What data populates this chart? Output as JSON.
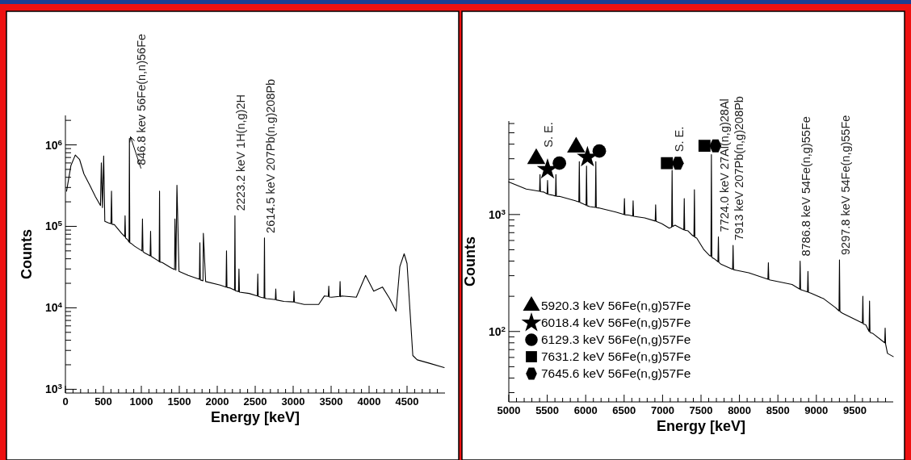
{
  "chart_data": [
    {
      "type": "line",
      "xlabel": "Energy [keV]",
      "ylabel": "Counts",
      "log": true,
      "xlim": [
        0,
        5000
      ],
      "ylim": [
        900,
        2300000
      ],
      "xticks": [
        0,
        {
          "value": 100,
          "label": null
        },
        {
          "value": 200,
          "label": null
        },
        {
          "value": 300,
          "label": null
        },
        {
          "value": 400,
          "label": null
        },
        500,
        {
          "value": 600,
          "label": null
        },
        {
          "value": 700,
          "label": null
        },
        {
          "value": 800,
          "label": null
        },
        {
          "value": 900,
          "label": null
        },
        1000,
        {
          "value": 1100,
          "label": null
        },
        {
          "value": 1200,
          "label": null
        },
        {
          "value": 1300,
          "label": null
        },
        {
          "value": 1400,
          "label": null
        },
        1500,
        {
          "value": 1600,
          "label": null
        },
        {
          "value": 1700,
          "label": null
        },
        {
          "value": 1800,
          "label": null
        },
        {
          "value": 1900,
          "label": null
        },
        2000,
        {
          "value": 2100,
          "label": null
        },
        {
          "value": 2200,
          "label": null
        },
        {
          "value": 2300,
          "label": null
        },
        {
          "value": 2400,
          "label": null
        },
        2500,
        {
          "value": 2600,
          "label": null
        },
        {
          "value": 2700,
          "label": null
        },
        {
          "value": 2800,
          "label": null
        },
        {
          "value": 2900,
          "label": null
        },
        3000,
        {
          "value": 3100,
          "label": null
        },
        {
          "value": 3200,
          "label": null
        },
        {
          "value": 3300,
          "label": null
        },
        {
          "value": 3400,
          "label": null
        },
        3500,
        {
          "value": 3600,
          "label": null
        },
        {
          "value": 3700,
          "label": null
        },
        {
          "value": 3800,
          "label": null
        },
        {
          "value": 3900,
          "label": null
        },
        4000,
        {
          "value": 4100,
          "label": null
        },
        {
          "value": 4200,
          "label": null
        },
        {
          "value": 4300,
          "label": null
        },
        {
          "value": 4400,
          "label": null
        },
        4500,
        {
          "value": 4600,
          "label": null
        },
        {
          "value": 4700,
          "label": null
        },
        {
          "value": 4800,
          "label": null
        },
        {
          "value": 4900,
          "label": null
        }
      ],
      "yticks": [
        {
          "value": 1000,
          "label": "10$^{3}$"
        },
        {
          "value": 2000,
          "label": null
        },
        {
          "value": 3000,
          "label": null
        },
        {
          "value": 4000,
          "label": null
        },
        {
          "value": 5000,
          "label": null
        },
        {
          "value": 6000,
          "label": null
        },
        {
          "value": 7000,
          "label": null
        },
        {
          "value": 8000,
          "label": null
        },
        {
          "value": 9000,
          "label": null
        },
        {
          "value": 10000,
          "label": "10$^{4}$"
        },
        {
          "value": 20000,
          "label": null
        },
        {
          "value": 30000,
          "label": null
        },
        {
          "value": 40000,
          "label": null
        },
        {
          "value": 50000,
          "label": null
        },
        {
          "value": 60000,
          "label": null
        },
        {
          "value": 70000,
          "label": null
        },
        {
          "value": 80000,
          "label": null
        },
        {
          "value": 90000,
          "label": null
        },
        {
          "value": 100000,
          "label": "10$^{5}$"
        },
        {
          "value": 200000,
          "label": null
        },
        {
          "value": 300000,
          "label": null
        },
        {
          "value": 400000,
          "label": null
        },
        {
          "value": 500000,
          "label": null
        },
        {
          "value": 600000,
          "label": null
        },
        {
          "value": 700000,
          "label": null
        },
        {
          "value": 800000,
          "label": null
        },
        {
          "value": 900000,
          "label": null
        },
        {
          "value": 1000000,
          "label": "10$^{6}$"
        },
        {
          "value": 2000000,
          "label": null
        }
      ],
      "x": [
        15,
        73,
        130,
        187,
        244,
        321,
        397,
        462,
        473,
        488,
        504,
        519,
        569,
        600,
        607,
        614,
        645,
        740,
        780,
        786,
        792,
        817,
        838,
        843,
        848,
        863,
        912,
        1008,
        1015,
        1022,
        1046,
        1116,
        1122,
        1128,
        1218,
        1235,
        1240,
        1245,
        1275,
        1389,
        1438,
        1443,
        1455,
        1469,
        1496,
        1618,
        1733,
        1765,
        1771,
        1777,
        1812,
        1817,
        1847,
        2038,
        2116,
        2122,
        2128,
        2172,
        2228,
        2233,
        2238,
        2260,
        2280,
        2286,
        2292,
        2420,
        2528,
        2534,
        2540,
        2573,
        2617,
        2622,
        2627,
        2649,
        2765,
        2771,
        2777,
        2878,
        3005,
        3011,
        3017,
        3145,
        3336,
        3412,
        3463,
        3469,
        3475,
        3508,
        3612,
        3618,
        3624,
        3641,
        3832,
        3954,
        4061,
        4176,
        4271,
        4355,
        4405,
        4462,
        4500,
        4538,
        4576,
        4634,
        4786,
        4990
      ],
      "series": [
        {
          "color": "#000000",
          "values": [
            270000,
            560000,
            750000,
            660000,
            440000,
            320000,
            230000,
            180000,
            600000,
            170000,
            730000,
            115000,
            110000,
            108000,
            270000,
            106000,
            105000,
            82000,
            75000,
            135000,
            72000,
            69000,
            64000,
            1200000,
            63000,
            62000,
            57000,
            50000,
            123000,
            49000,
            47000,
            43500,
            87000,
            43000,
            38000,
            37000,
            270000,
            36500,
            36000,
            31000,
            29500,
            123000,
            29000,
            320000,
            28000,
            25000,
            23000,
            22500,
            63000,
            22000,
            21500,
            82000,
            21000,
            19000,
            18000,
            50000,
            17800,
            17500,
            16500,
            135000,
            16200,
            16000,
            15800,
            30000,
            15600,
            15000,
            14000,
            26000,
            13800,
            13500,
            13200,
            72000,
            13100,
            13000,
            12600,
            17000,
            12500,
            12000,
            11800,
            16000,
            11700,
            11000,
            11000,
            14000,
            13800,
            18500,
            13600,
            13500,
            13800,
            21000,
            13700,
            14000,
            13500,
            25000,
            16000,
            18000,
            13000,
            9100,
            32000,
            46000,
            35000,
            9500,
            2600,
            2300,
            2100,
            1850
          ]
        }
      ],
      "annotations": [
        {
          "text": "846.8 kev 56Fe(n,n)56Fe",
          "x": 846.8,
          "y": 1200000
        },
        {
          "text": "2223.2 keV 1H(n,g)2H",
          "x": 2223.2,
          "y": 135000
        },
        {
          "text": "2614.5 keV 207Pb(n.g)208Pb",
          "x": 2614.5,
          "y": 72000
        }
      ]
    },
    {
      "type": "line",
      "xlabel": "Energy [keV]",
      "ylabel": "Counts",
      "log": true,
      "xlim": [
        5000,
        10000
      ],
      "ylim": [
        25,
        6300
      ],
      "legend": "bottom left",
      "xticks": [
        5000,
        {
          "value": 5100,
          "label": null
        },
        {
          "value": 5200,
          "label": null
        },
        {
          "value": 5300,
          "label": null
        },
        {
          "value": 5400,
          "label": null
        },
        5500,
        {
          "value": 5600,
          "label": null
        },
        {
          "value": 5700,
          "label": null
        },
        {
          "value": 5800,
          "label": null
        },
        {
          "value": 5900,
          "label": null
        },
        6000,
        {
          "value": 6100,
          "label": null
        },
        {
          "value": 6200,
          "label": null
        },
        {
          "value": 6300,
          "label": null
        },
        {
          "value": 6400,
          "label": null
        },
        6500,
        {
          "value": 6600,
          "label": null
        },
        {
          "value": 6700,
          "label": null
        },
        {
          "value": 6800,
          "label": null
        },
        {
          "value": 6900,
          "label": null
        },
        7000,
        {
          "value": 7100,
          "label": null
        },
        {
          "value": 7200,
          "label": null
        },
        {
          "value": 7300,
          "label": null
        },
        {
          "value": 7400,
          "label": null
        },
        7500,
        {
          "value": 7600,
          "label": null
        },
        {
          "value": 7700,
          "label": null
        },
        {
          "value": 7800,
          "label": null
        },
        {
          "value": 7900,
          "label": null
        },
        8000,
        {
          "value": 8100,
          "label": null
        },
        {
          "value": 8200,
          "label": null
        },
        {
          "value": 8300,
          "label": null
        },
        {
          "value": 8400,
          "label": null
        },
        8500,
        {
          "value": 8600,
          "label": null
        },
        {
          "value": 8700,
          "label": null
        },
        {
          "value": 8800,
          "label": null
        },
        {
          "value": 8900,
          "label": null
        },
        9000,
        {
          "value": 9100,
          "label": null
        },
        {
          "value": 9200,
          "label": null
        },
        {
          "value": 9300,
          "label": null
        },
        {
          "value": 9400,
          "label": null
        },
        9500,
        {
          "value": 9600,
          "label": null
        },
        {
          "value": 9700,
          "label": null
        },
        {
          "value": 9800,
          "label": null
        },
        {
          "value": 9900,
          "label": null
        }
      ],
      "yticks": [
        {
          "value": 30,
          "label": null
        },
        {
          "value": 40,
          "label": null
        },
        {
          "value": 50,
          "label": null
        },
        {
          "value": 60,
          "label": null
        },
        {
          "value": 70,
          "label": null
        },
        {
          "value": 80,
          "label": null
        },
        {
          "value": 90,
          "label": null
        },
        {
          "value": 100,
          "label": "10$^{2}$"
        },
        {
          "value": 200,
          "label": null
        },
        {
          "value": 300,
          "label": null
        },
        {
          "value": 400,
          "label": null
        },
        {
          "value": 500,
          "label": null
        },
        {
          "value": 600,
          "label": null
        },
        {
          "value": 700,
          "label": null
        },
        {
          "value": 800,
          "label": null
        },
        {
          "value": 900,
          "label": null
        },
        {
          "value": 1000,
          "label": "10$^{3}$"
        },
        {
          "value": 2000,
          "label": null
        },
        {
          "value": 3000,
          "label": null
        },
        {
          "value": 4000,
          "label": null
        },
        {
          "value": 5000,
          "label": null
        },
        {
          "value": 6000,
          "label": null
        }
      ],
      "series": [
        {
          "color": "#000000",
          "x": [
            5000,
            5226,
            5400,
            5406,
            5412,
            5451,
            5498,
            5504,
            5510,
            5556,
            5607,
            5613,
            5619,
            5658,
            5865,
            5911,
            5917,
            5923,
            5959,
            6005,
            6011,
            6017,
            6053,
            6126,
            6132,
            6138,
            6165,
            6391,
            6498,
            6504,
            6510,
            6560,
            6611,
            6617,
            6623,
            6767,
            6904,
            6910,
            6916,
            6992,
            7086,
            7118,
            7124,
            7130,
            7162,
            7276,
            7282,
            7288,
            7331,
            7387,
            7408,
            7414,
            7420,
            7444,
            7538,
            7613,
            7629,
            7635,
            7641,
            7669,
            7720,
            7726,
            7732,
            7763,
            7911,
            7917,
            7923,
            7951,
            8120,
            8370,
            8376,
            8382,
            8402,
            8684,
            8783,
            8789,
            8795,
            8816,
            8885,
            8891,
            8897,
            8929,
            9098,
            9248,
            9295,
            9301,
            9307,
            9342,
            9599,
            9605,
            9611,
            9643,
            9686,
            9692,
            9698,
            9737,
            9889,
            9895,
            9901,
            9925,
            10000
          ],
          "values": [
            1900,
            1650,
            1580,
            2200,
            1570,
            1560,
            1500,
            1960,
            1490,
            1470,
            1440,
            2200,
            1435,
            1430,
            1310,
            1280,
            2830,
            1270,
            1240,
            1200,
            2600,
            1190,
            1170,
            1150,
            2830,
            1145,
            1140,
            1050,
            1000,
            1370,
            995,
            990,
            970,
            1310,
            965,
            935,
            880,
            1210,
            875,
            835,
            765,
            780,
            2390,
            790,
            810,
            740,
            1370,
            735,
            725,
            665,
            650,
            1630,
            640,
            630,
            500,
            445,
            440,
            3260,
            430,
            420,
            395,
            645,
            390,
            375,
            340,
            545,
            338,
            335,
            318,
            280,
            387,
            278,
            275,
            252,
            230,
            400,
            228,
            226,
            218,
            326,
            216,
            213,
            190,
            160,
            150,
            410,
            148,
            143,
            118,
            200,
            116,
            114,
            100,
            182,
            98,
            96,
            80,
            107,
            78,
            65,
            61
          ]
        },
        {
          "type": "scatter",
          "name": "5920.3 keV 56Fe(n,g)57Fe",
          "color": "#000000",
          "marker": "triangle",
          "x": [
            5357,
            5876
          ],
          "values": [
            3000,
            3760
          ]
        },
        {
          "type": "scatter",
          "name": "6018.4 keV 56Fe(n,g)57Fe",
          "color": "#000000",
          "marker": "star",
          "x": [
            5504,
            6023
          ],
          "values": [
            2430,
            3090
          ]
        },
        {
          "type": "scatter",
          "name": "6129.3 keV 56Fe(n,g)57Fe",
          "color": "#000000",
          "marker": "circle",
          "x": [
            5658,
            6177
          ],
          "values": [
            2750,
            3490
          ]
        },
        {
          "type": "scatter",
          "name": "7631.2 keV 56Fe(n,g)57Fe",
          "color": "#000000",
          "marker": "square",
          "x": [
            7056,
            7545
          ],
          "values": [
            2750,
            3870
          ]
        },
        {
          "type": "scatter",
          "name": "7645.6 keV 56Fe(n,g)57Fe",
          "color": "#000000",
          "x": [
            7199,
            7688
          ],
          "values": [
            2750,
            3870
          ]
        }
      ],
      "annotations": [
        {
          "text": "S. E.",
          "x": 5357,
          "y": 3000
        },
        {
          "text": "S. E.",
          "x": 7056,
          "y": 2750
        },
        {
          "text": "7724.0 keV 27Al(n,g)28Al",
          "x": 7724.0,
          "y": 645
        },
        {
          "text": "7913 keV 207Pb(n,g)208Pb",
          "x": 7913,
          "y": 545
        },
        {
          "text": "8786.8 keV 54Fe(n,g)55Fe",
          "x": 8786.8,
          "y": 400
        },
        {
          "text": "9297.8 keV 54Fe(n,g)55Fe",
          "x": 9297.8,
          "y": 410
        }
      ]
    }
  ]
}
